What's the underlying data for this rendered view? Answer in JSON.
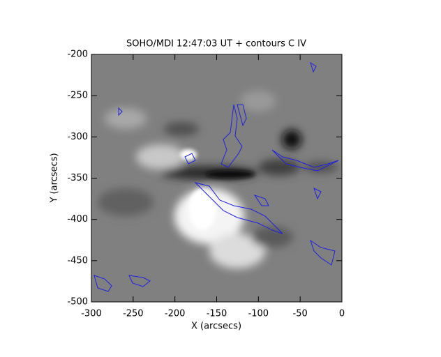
{
  "chart_data": {
    "type": "image",
    "title": "SOHO/MDI 12:47:03 UT + contours C IV",
    "x_label": "X (arcsecs)",
    "y_label": "Y (arcsecs)",
    "xlim": [
      -300,
      0
    ],
    "xticks": [
      -300,
      -250,
      -200,
      -150,
      -100,
      -50,
      0
    ],
    "ylim": [
      -500,
      -200
    ],
    "yticks": [
      -500,
      -450,
      -400,
      -350,
      -300,
      -250,
      -200
    ],
    "contour_color": "#2020e0"
  }
}
